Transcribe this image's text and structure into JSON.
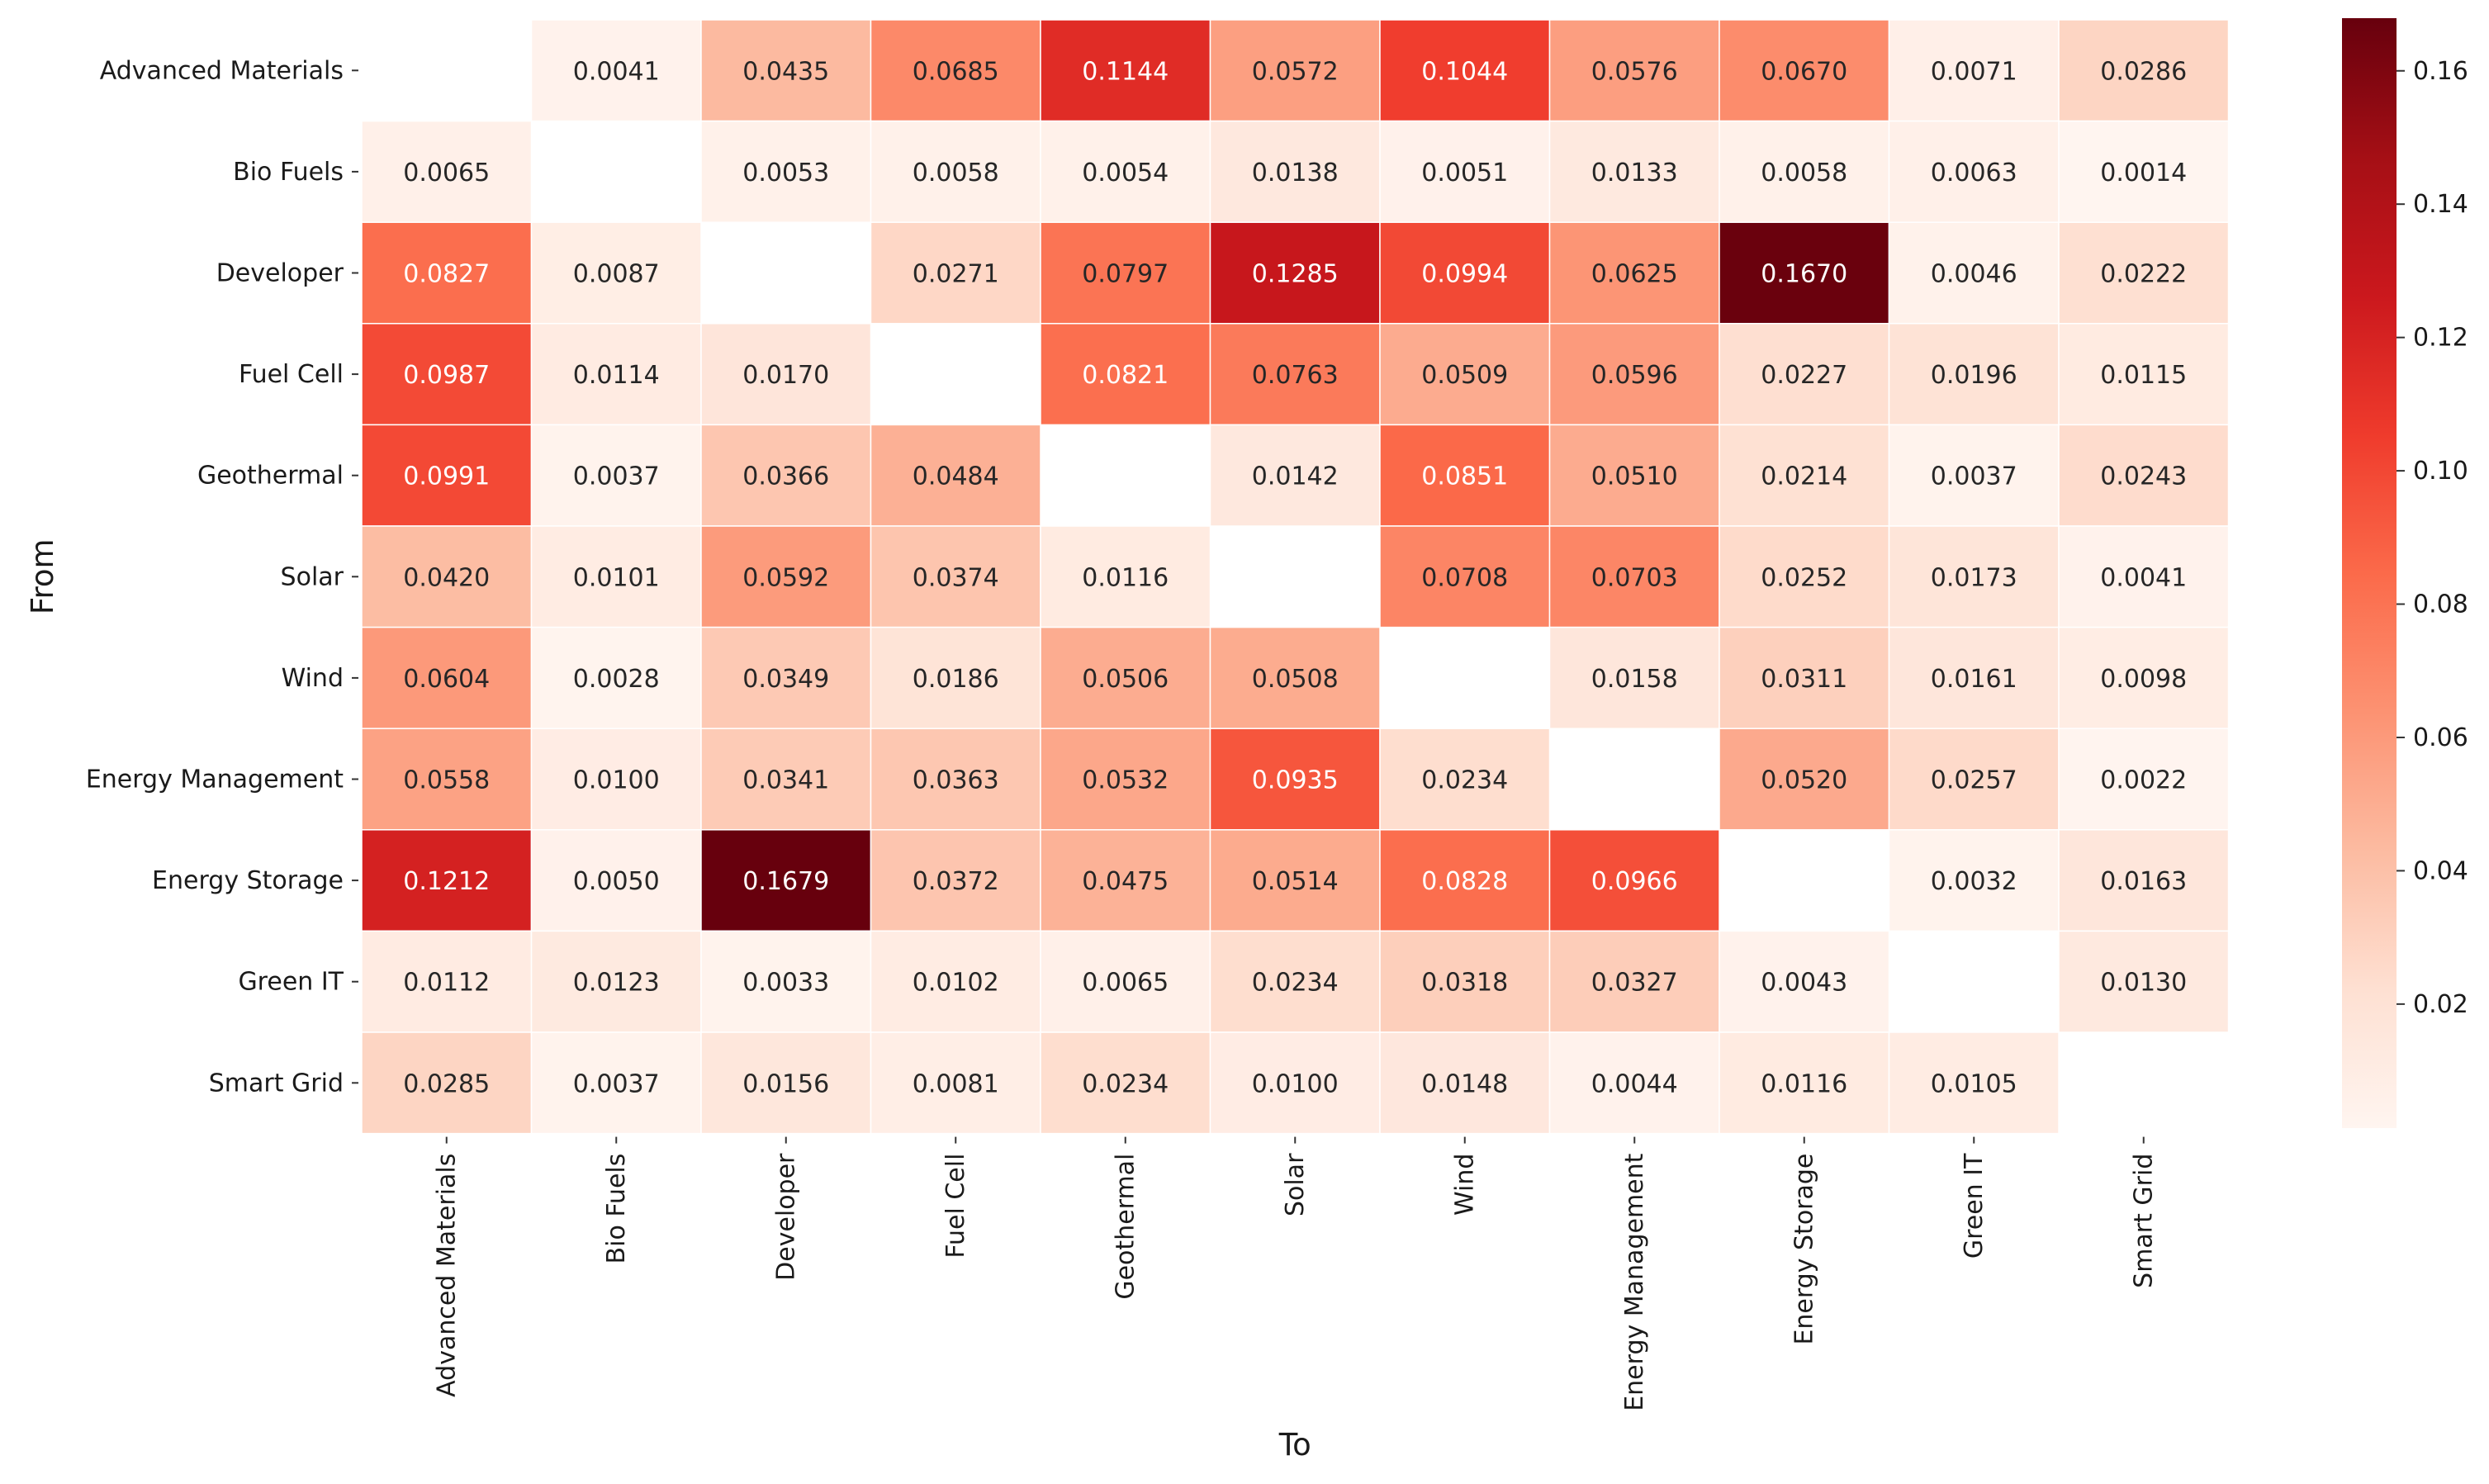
{
  "chart_data": {
    "type": "heatmap",
    "title": "",
    "xlabel": "To",
    "ylabel": "From",
    "categories_x": [
      "Advanced Materials",
      "Bio Fuels",
      "Developer",
      "Fuel Cell",
      "Geothermal",
      "Solar",
      "Wind",
      "Energy Management",
      "Energy Storage",
      "Green IT",
      "Smart Grid"
    ],
    "categories_y": [
      "Advanced Materials",
      "Bio Fuels",
      "Developer",
      "Fuel Cell",
      "Geothermal",
      "Solar",
      "Wind",
      "Energy Management",
      "Energy Storage",
      "Green IT",
      "Smart Grid"
    ],
    "values": [
      [
        null,
        0.0041,
        0.0435,
        0.0685,
        0.1144,
        0.0572,
        0.1044,
        0.0576,
        0.067,
        0.0071,
        0.0286
      ],
      [
        0.0065,
        null,
        0.0053,
        0.0058,
        0.0054,
        0.0138,
        0.0051,
        0.0133,
        0.0058,
        0.0063,
        0.0014
      ],
      [
        0.0827,
        0.0087,
        null,
        0.0271,
        0.0797,
        0.1285,
        0.0994,
        0.0625,
        0.167,
        0.0046,
        0.0222
      ],
      [
        0.0987,
        0.0114,
        0.017,
        null,
        0.0821,
        0.0763,
        0.0509,
        0.0596,
        0.0227,
        0.0196,
        0.0115
      ],
      [
        0.0991,
        0.0037,
        0.0366,
        0.0484,
        null,
        0.0142,
        0.0851,
        0.051,
        0.0214,
        0.0037,
        0.0243
      ],
      [
        0.042,
        0.0101,
        0.0592,
        0.0374,
        0.0116,
        null,
        0.0708,
        0.0703,
        0.0252,
        0.0173,
        0.0041
      ],
      [
        0.0604,
        0.0028,
        0.0349,
        0.0186,
        0.0506,
        0.0508,
        null,
        0.0158,
        0.0311,
        0.0161,
        0.0098
      ],
      [
        0.0558,
        0.01,
        0.0341,
        0.0363,
        0.0532,
        0.0935,
        0.0234,
        null,
        0.052,
        0.0257,
        0.0022
      ],
      [
        0.1212,
        0.005,
        0.1679,
        0.0372,
        0.0475,
        0.0514,
        0.0828,
        0.0966,
        null,
        0.0032,
        0.0163
      ],
      [
        0.0112,
        0.0123,
        0.0033,
        0.0102,
        0.0065,
        0.0234,
        0.0318,
        0.0327,
        0.0043,
        null,
        0.013
      ],
      [
        0.0285,
        0.0037,
        0.0156,
        0.0081,
        0.0234,
        0.01,
        0.0148,
        0.0044,
        0.0116,
        0.0105,
        null
      ]
    ],
    "colormap": "Reds",
    "colorbar": {
      "vmin": 0.0014,
      "vmax": 0.1679,
      "ticks": [
        0.02,
        0.04,
        0.06,
        0.08,
        0.1,
        0.12,
        0.14,
        0.16
      ],
      "tick_labels": [
        "0.02",
        "0.04",
        "0.06",
        "0.08",
        "0.10",
        "0.12",
        "0.14",
        "0.16"
      ]
    },
    "cell_label_format": "4 decimals",
    "grid": false,
    "legend": "colorbar right"
  },
  "colors": {
    "background": "#ffffff",
    "text_dark": "#262626",
    "text_light": "#ffffff",
    "cell_border": "#ffffff"
  }
}
